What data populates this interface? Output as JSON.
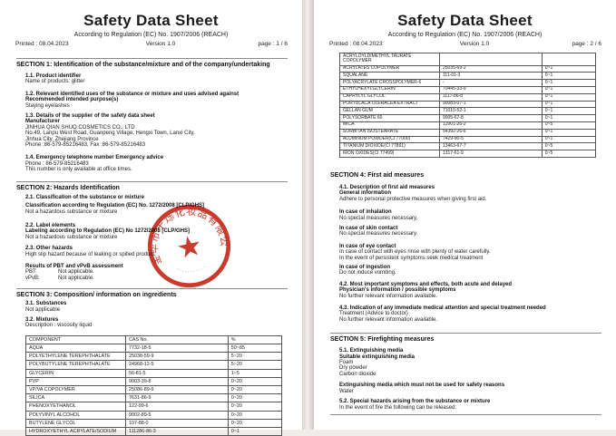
{
  "doc": {
    "title": "Safety Data Sheet",
    "subtitle": "According to Regulation (EC) No. 1907/2006 (REACH)",
    "printed_label": "Printed :",
    "printed_date": "08.04.2023",
    "version": "Version 1.0",
    "page_label": "page :"
  },
  "stamp": {
    "color": "#c62a1b",
    "text": "金华市千烁化妆品有限公司",
    "dots": "···········",
    "star": "★"
  },
  "page1": {
    "page_num": "1 / 6",
    "blocks": [
      {
        "k": "sp",
        "h": 8
      },
      {
        "k": "rule"
      },
      {
        "k": "h",
        "t": "SECTION 1: Identification of the substance/mixture and of the company/undertaking"
      },
      {
        "k": "sp",
        "h": 6
      },
      {
        "k": "b",
        "t": "1.1. Product identifier"
      },
      {
        "k": "p",
        "t": "Name of products: glitter"
      },
      {
        "k": "sp",
        "h": 7
      },
      {
        "k": "b",
        "t": "1.2. Relevant identified uses of the substance or mixture and uses advised against"
      },
      {
        "k": "b",
        "t": "Recommended intended purpose(s)"
      },
      {
        "k": "p",
        "t": "Staying eyelashes"
      },
      {
        "k": "sp",
        "h": 5
      },
      {
        "k": "b",
        "t": "1.3. Details of the supplier of the safety data sheet"
      },
      {
        "k": "b",
        "t": "Manufacturer"
      },
      {
        "k": "p",
        "t": "JINHUA QIAN SHUO COSMETICS CO., LTD"
      },
      {
        "k": "p",
        "t": "No.49, Lanpu West Road, Guanpeng Village, Hengxi Town, Lanxi City,"
      },
      {
        "k": "p",
        "t": "Jinhua City, Zhejiang Province"
      },
      {
        "k": "p",
        "t": "Phone :86-579-85216483, Fax :86-579-85216483"
      },
      {
        "k": "sp",
        "h": 8
      },
      {
        "k": "b",
        "t": "1.4. Emergency telephone number Emergency advice"
      },
      {
        "k": "p",
        "t": "Phone : 86-579-85216483"
      },
      {
        "k": "p",
        "t": "This number is only available at office times."
      },
      {
        "k": "sp",
        "h": 5
      },
      {
        "k": "rule"
      },
      {
        "k": "h",
        "t": "SECTION 2: Hazards Identification"
      },
      {
        "k": "sp",
        "h": 4
      },
      {
        "k": "b",
        "t": "2.1. Classification of the substance or mixture"
      },
      {
        "k": "sp",
        "h": 3
      },
      {
        "k": "b",
        "t": "Classification according to Regulation (EC) No. 1272/2008 [CLP/GHS]"
      },
      {
        "k": "p",
        "t": "Not a hazardous substance or mixture"
      },
      {
        "k": "sp",
        "h": 9
      },
      {
        "k": "b",
        "t": "2.2. Label elements"
      },
      {
        "k": "b",
        "t": "Labeling according to Regulation (EC) No 1272/2008 [CLP/GHS]"
      },
      {
        "k": "p",
        "t": "Not a hazardous substance or mixture"
      },
      {
        "k": "sp",
        "h": 6
      },
      {
        "k": "b",
        "t": "2.3. Other hazards"
      },
      {
        "k": "p",
        "t": "High slip hazard because of leaking or spilled product."
      },
      {
        "k": "sp",
        "h": 7
      },
      {
        "k": "b",
        "t": "Results of PBT and vPvB assessment"
      },
      {
        "k": "kv",
        "t": "PBT:",
        "v": "Not applicable."
      },
      {
        "k": "kv",
        "t": "vPvB:",
        "v": "Not applicable."
      },
      {
        "k": "sp",
        "h": 4
      },
      {
        "k": "rule"
      },
      {
        "k": "h",
        "t": "SECTION 3: Composition/ information on ingredients"
      },
      {
        "k": "sp",
        "h": 3
      },
      {
        "k": "b",
        "t": "3.1. Substances"
      },
      {
        "k": "p",
        "t": "Not applicable"
      },
      {
        "k": "sp",
        "h": 5
      },
      {
        "k": "b",
        "t": "3.2. Mixtures"
      },
      {
        "k": "p",
        "t": "Description : viscosity liquid"
      },
      {
        "k": "sp",
        "h": 6
      },
      {
        "k": "table",
        "head": [
          "COMPONENT",
          "CAS No.",
          "%"
        ],
        "rows": [
          [
            "AQUA",
            "7732-18-5",
            "50~85"
          ],
          [
            "POLYETHYLENE TEREPHTHALATE",
            "25038-59-9",
            "5~20"
          ],
          [
            "POLYBUTYLENE TEREPHTHALATE",
            "24968-12-5",
            "5~20"
          ],
          [
            "GLYCERIN",
            "56-81-5",
            "1~5"
          ],
          [
            "PVP",
            "9003-39-8",
            "0~20"
          ],
          [
            "VP/VA COPOLYMER",
            "25086-89-9",
            "0~20"
          ],
          [
            "SILICA",
            "7631-86-9",
            "0~20"
          ],
          [
            "PHENOXYETHANOL",
            "122-99-6",
            "0~20"
          ],
          [
            "POLYVINYL ALCOHOL",
            "9002-89-5",
            "0~20"
          ],
          [
            "BUTYLENE GLYCOL",
            "107-88-0",
            "0~20"
          ],
          [
            "HYDROXYETHYL ACRYLATE/SODIUM",
            "111286-86-3",
            "0~1"
          ]
        ]
      }
    ]
  },
  "page2": {
    "page_num": "2 / 6",
    "blocks": [
      {
        "k": "sp",
        "h": 5
      },
      {
        "k": "table",
        "rows": [
          [
            "ACRYLOYLDIMETHYL TAURATE\nCOPOLYMER",
            "",
            ""
          ],
          [
            "ACRYLATES COPOLYMER",
            "25035-69-2",
            "0~1"
          ],
          [
            "SQUALANE",
            "111-01-3",
            "0~1"
          ],
          [
            "POLYACRYLATE CROSSPOLYMER-6",
            "-",
            "0~1"
          ],
          [
            "ETHYLHEXYLGLYCERIN",
            "70445-33-9",
            "0~1"
          ],
          [
            "CAPRYLYL GLYCOL",
            "1117-86-8",
            "0~1"
          ],
          [
            "PORTULACA OLERACEA EXTRACT",
            "90083-07-1",
            "0~1"
          ],
          [
            "GELLAN GUM",
            "71010-52-1",
            "0~1"
          ],
          [
            "POLYSORBATE 60",
            "9005-67-8",
            "0~1"
          ],
          [
            "MICA",
            "12001-26-2",
            "0~5"
          ],
          [
            "SORBITAN ISOSTEARATE",
            "54392-26-6",
            "0~1"
          ],
          [
            "ALUMINUM POWDER(CI 77000)",
            "7429-90-5",
            "0~1"
          ],
          [
            "TITANIUM DIOXIDE(CI 77891)",
            "13463-67-7",
            "0~5"
          ],
          [
            "IRON OXIDES(CI 77499)",
            "1317-61-9",
            "0~5"
          ]
        ]
      },
      {
        "k": "sp",
        "h": 15
      },
      {
        "k": "h",
        "t": "SECTION 4: First aid measures"
      },
      {
        "k": "sp",
        "h": 7
      },
      {
        "k": "b",
        "t": "4.1. Description of first aid measures"
      },
      {
        "k": "b",
        "t": "General information"
      },
      {
        "k": "p",
        "t": "Adhere to personal protective measures when giving first aid."
      },
      {
        "k": "sp",
        "h": 8
      },
      {
        "k": "b",
        "t": "In case of inhalation"
      },
      {
        "k": "p",
        "t": "No special measures necessary."
      },
      {
        "k": "sp",
        "h": 5
      },
      {
        "k": "b",
        "t": "In case of skin contact"
      },
      {
        "k": "p",
        "t": "No special measures necessary."
      },
      {
        "k": "sp",
        "h": 7
      },
      {
        "k": "b",
        "t": "In case of eye contact"
      },
      {
        "k": "p",
        "t": "In case of contact with eyes rinse with plenty of water carefully."
      },
      {
        "k": "p",
        "t": "In the event of persistent symptoms seek medical treatment"
      },
      {
        "k": "sp",
        "h": 4
      },
      {
        "k": "b",
        "t": "In case of ingestion"
      },
      {
        "k": "p",
        "t": "Do not induce vomiting."
      },
      {
        "k": "sp",
        "h": 6
      },
      {
        "k": "b",
        "t": "4.2. Most important symptoms and effects, both acute and delayed"
      },
      {
        "k": "b",
        "t": "Physician's information / possible symptoms"
      },
      {
        "k": "p",
        "t": "No further relevant information available."
      },
      {
        "k": "sp",
        "h": 7
      },
      {
        "k": "b",
        "t": "4.3. Indication of any immediate medical attention and special treatment needed"
      },
      {
        "k": "p",
        "t": "Treatment (Advice to doctor)"
      },
      {
        "k": "p",
        "t": "No further relevant information available."
      },
      {
        "k": "sp",
        "h": 7
      },
      {
        "k": "rule"
      },
      {
        "k": "h",
        "t": "SECTION 5: Firefighting measures"
      },
      {
        "k": "sp",
        "h": 6
      },
      {
        "k": "b",
        "t": "5.1. Extinguishing media"
      },
      {
        "k": "b",
        "t": "Suitable extinguishing media"
      },
      {
        "k": "p",
        "t": "Foam"
      },
      {
        "k": "p",
        "t": "Dry powder"
      },
      {
        "k": "p",
        "t": "Carbon dioxide"
      },
      {
        "k": "sp",
        "h": 6
      },
      {
        "k": "b",
        "t": "Extinguishing media which must not be used for safety reasons"
      },
      {
        "k": "p",
        "t": "Water"
      },
      {
        "k": "sp",
        "h": 5
      },
      {
        "k": "b",
        "t": "5.2. Special hazards arising from the substance or mixture"
      },
      {
        "k": "p",
        "t": "In the event of fire the following can be released:"
      },
      {
        "k": "rule"
      }
    ]
  }
}
